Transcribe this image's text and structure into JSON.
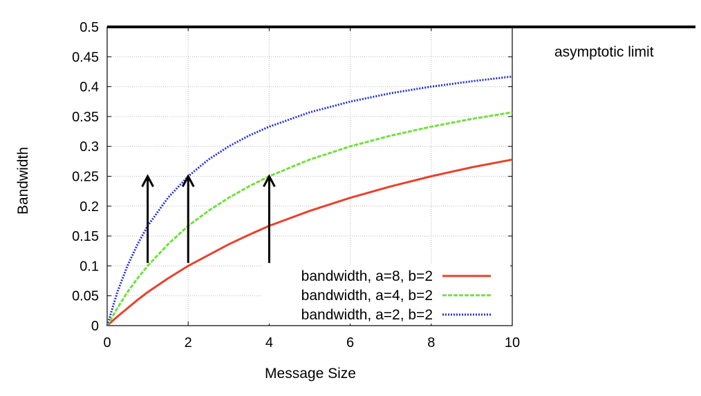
{
  "chart_data": {
    "type": "line",
    "title": "",
    "xlabel": "Message Size",
    "ylabel": "Bandwidth",
    "xlim": [
      0,
      10
    ],
    "ylim": [
      0,
      0.5
    ],
    "x_ticks": [
      "0",
      "2",
      "4",
      "6",
      "8",
      "10"
    ],
    "y_ticks": [
      "0",
      "0.05",
      "0.1",
      "0.15",
      "0.2",
      "0.25",
      "0.3",
      "0.35",
      "0.4",
      "0.45",
      "0.5"
    ],
    "grid": true,
    "legend_position": "bottom-right",
    "x": [
      0,
      0.25,
      0.5,
      0.75,
      1,
      1.5,
      2,
      2.5,
      3,
      3.5,
      4,
      5,
      6,
      7,
      8,
      9,
      10
    ],
    "series": [
      {
        "name": "bandwidth, a=8, b=2",
        "color": "#e8402a",
        "style": "solid",
        "values": [
          0,
          0.015,
          0.029,
          0.043,
          0.056,
          0.079,
          0.1,
          0.118,
          0.136,
          0.152,
          0.167,
          0.192,
          0.214,
          0.233,
          0.25,
          0.265,
          0.278
        ]
      },
      {
        "name": "bandwidth, a=4, b=2",
        "color": "#6fe03c",
        "style": "dashed",
        "values": [
          0,
          0.029,
          0.056,
          0.079,
          0.1,
          0.136,
          0.167,
          0.192,
          0.214,
          0.233,
          0.25,
          0.278,
          0.3,
          0.318,
          0.333,
          0.346,
          0.357
        ]
      },
      {
        "name": "bandwidth, a=2, b=2",
        "color": "#1f2ee0",
        "style": "dotted",
        "values": [
          0,
          0.056,
          0.1,
          0.136,
          0.167,
          0.214,
          0.25,
          0.278,
          0.3,
          0.318,
          0.333,
          0.357,
          0.375,
          0.389,
          0.4,
          0.409,
          0.417
        ]
      }
    ],
    "reference_line": {
      "y": 0.5,
      "label": "asymptotic limit",
      "color": "#000000"
    },
    "arrows": [
      {
        "x": 1,
        "y_from": 0.105,
        "y_to": 0.25
      },
      {
        "x": 2,
        "y_from": 0.105,
        "y_to": 0.25
      },
      {
        "x": 4,
        "y_from": 0.105,
        "y_to": 0.25
      }
    ]
  }
}
